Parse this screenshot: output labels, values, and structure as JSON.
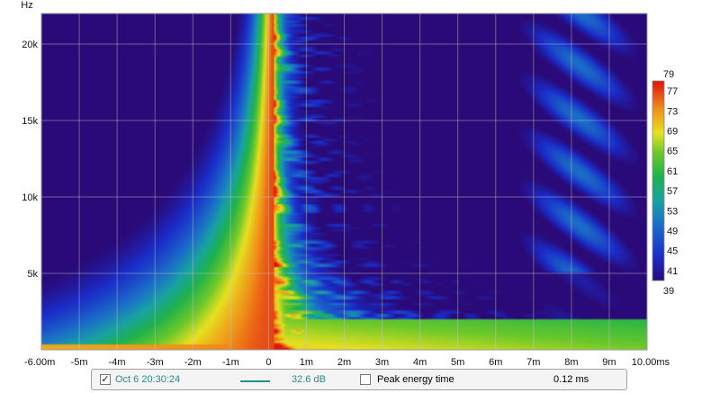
{
  "chart_data": {
    "type": "heatmap",
    "title": "",
    "xlabel": "",
    "ylabel": "Hz",
    "x_unit": "ms",
    "xlim": [
      -6.0,
      10.0
    ],
    "ylim": [
      0,
      22000
    ],
    "x_ticks": [
      -6,
      -5,
      -4,
      -3,
      -2,
      -1,
      0,
      1,
      2,
      3,
      4,
      5,
      6,
      7,
      8,
      9,
      10
    ],
    "x_tick_labels": [
      "-6.00m",
      "-5m",
      "-4m",
      "-3m",
      "-2m",
      "-1m",
      "0",
      "1m",
      "2m",
      "3m",
      "4m",
      "5m",
      "6m",
      "7m",
      "8m",
      "9m",
      "10.00ms"
    ],
    "y_ticks": [
      5000,
      10000,
      15000,
      20000
    ],
    "y_tick_labels": [
      "5k",
      "10k",
      "15k",
      "20k"
    ],
    "grid": true,
    "colorbar": {
      "min": 39,
      "max": 79,
      "ticks": [
        41,
        45,
        49,
        53,
        57,
        61,
        65,
        69,
        73,
        77
      ],
      "tick_labels": [
        "41",
        "45",
        "49",
        "53",
        "57",
        "61",
        "65",
        "69",
        "73",
        "77"
      ],
      "min_label": "39",
      "max_label": "79"
    },
    "peak_time_ms": 0.12,
    "background_color": "#2a0a78"
  },
  "legend": {
    "checked_mark": "✓",
    "measurement_name": "Oct 6 20:30:24",
    "series_color": "#1f8f8f",
    "range_value": "32.6 dB",
    "peak_label": "Peak energy time",
    "peak_value": "0.12 ms"
  }
}
